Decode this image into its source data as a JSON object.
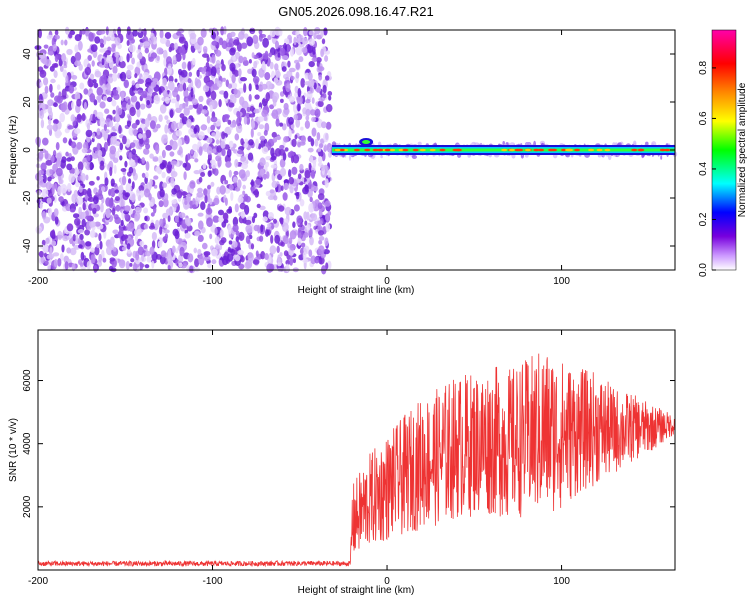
{
  "title": "GN05.2026.098.16.47.R21",
  "colors": {
    "snr_line": "#ee3333",
    "scatter": "#6a1fd6",
    "frame": "#000000",
    "colormap": [
      "#ffffff",
      "#cc99ff",
      "#7700dd",
      "#0000ff",
      "#00ffff",
      "#00ff00",
      "#ffff00",
      "#ff8800",
      "#ff0000",
      "#ff00aa"
    ]
  },
  "chart_data": [
    {
      "type": "heatmap",
      "name": "spectrogram",
      "title": "GN05.2026.098.16.47.R21",
      "xlabel": "Height of straight line (km)",
      "ylabel": "Frequency (Hz)",
      "xlim": [
        -200,
        165
      ],
      "ylim": [
        -50,
        50
      ],
      "xticks": [
        -200,
        -100,
        0,
        100
      ],
      "xtick_labels": [
        "-200",
        "-100",
        "0",
        "100"
      ],
      "yticks": [
        -40,
        -20,
        0,
        20,
        40
      ],
      "ytick_labels": [
        "-40",
        "-20",
        "0",
        "20",
        "40"
      ],
      "noise_region_x": [
        -200,
        -35
      ],
      "signal_band_hz": 0,
      "signal_start_km": -35,
      "colorbar": {
        "label": "Normalized spectral amplitude",
        "range": [
          0,
          0.95
        ],
        "ticks": [
          0,
          0.2,
          0.4,
          0.6,
          0.8
        ],
        "tick_labels": [
          "0.0",
          "0.2",
          "0.4",
          "0.6",
          "0.8"
        ]
      }
    },
    {
      "type": "line",
      "name": "snr",
      "xlabel": "Height of straight line (km)",
      "ylabel": "SNR (10 * v/v)",
      "xlim": [
        -200,
        165
      ],
      "ylim": [
        0,
        7600
      ],
      "xticks": [
        -200,
        -100,
        0,
        100
      ],
      "xtick_labels": [
        "-200",
        "-100",
        "0",
        "100"
      ],
      "yticks": [
        2000,
        4000,
        6000
      ],
      "ytick_labels": [
        "2000",
        "4000",
        "6000"
      ],
      "series": [
        {
          "name": "SNR",
          "x": [
            -200,
            -150,
            -100,
            -50,
            -21,
            -20,
            -10,
            0,
            10,
            20,
            30,
            40,
            50,
            60,
            70,
            80,
            90,
            100,
            110,
            120,
            130,
            140,
            150,
            165
          ],
          "values": [
            200,
            200,
            200,
            210,
            200,
            1500,
            2200,
            2600,
            3000,
            3400,
            3600,
            3900,
            4000,
            4100,
            4000,
            4200,
            4400,
            4300,
            4400,
            4500,
            4400,
            4500,
            4500,
            4600
          ],
          "spread": [
            80,
            80,
            80,
            80,
            80,
            1200,
            1500,
            1700,
            1900,
            2100,
            2200,
            2300,
            2300,
            2400,
            2400,
            2500,
            2700,
            2400,
            2000,
            1800,
            1400,
            1100,
            800,
            300
          ]
        }
      ]
    }
  ]
}
